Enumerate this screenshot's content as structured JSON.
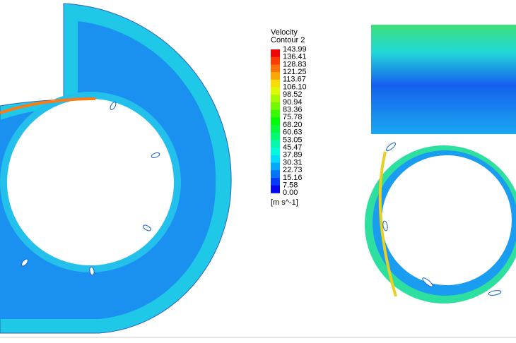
{
  "legend": {
    "title": "Velocity",
    "subtitle": "Contour 2",
    "labels": [
      "143.99",
      "136.41",
      "128.83",
      "121.25",
      "113.67",
      "106.10",
      "98.52",
      "90.94",
      "83.36",
      "75.78",
      "68.20",
      "60.63",
      "53.05",
      "45.47",
      "37.89",
      "30.31",
      "22.73",
      "15.16",
      "7.58",
      "0.00"
    ],
    "unit": "[m s^-1]"
  }
}
